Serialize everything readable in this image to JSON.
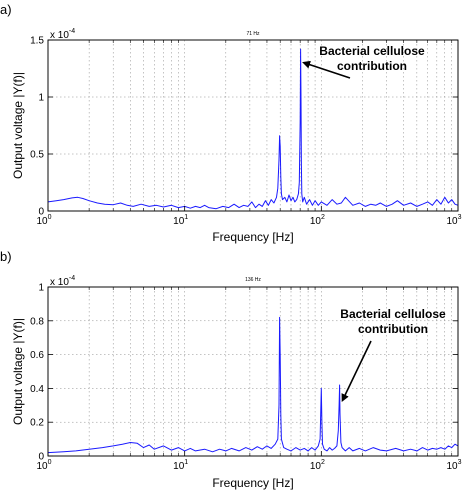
{
  "chart_data": [
    {
      "panel_label": "a)",
      "type": "line",
      "title": "71 Hz",
      "xlabel": "Frequency [Hz]",
      "ylabel": "Output voltage |Y(f)|",
      "x_scale": "log",
      "xlim": [
        1,
        1000
      ],
      "ylim": [
        0,
        1.5
      ],
      "y_multiplier": "x 10",
      "y_multiplier_exp": "-4",
      "x_ticks": [
        {
          "value": 1,
          "base": "10",
          "exp": "0"
        },
        {
          "value": 10,
          "base": "10",
          "exp": "1"
        },
        {
          "value": 100,
          "base": "10",
          "exp": "2"
        },
        {
          "value": 1000,
          "base": "10",
          "exp": "3"
        }
      ],
      "y_ticks": [
        {
          "value": 0,
          "label": "0"
        },
        {
          "value": 0.5,
          "label": "0.5"
        },
        {
          "value": 1,
          "label": "1"
        },
        {
          "value": 1.5,
          "label": "1.5"
        }
      ],
      "grid": true,
      "annotation": {
        "lines": [
          "Bacterial cellulose",
          "contribution"
        ],
        "points_to": {
          "x": 71,
          "y": 1.3
        }
      },
      "series": [
        {
          "color": "#1a1aff",
          "x": [
            1,
            1.15,
            1.3,
            1.5,
            1.65,
            1.8,
            2,
            2.3,
            2.6,
            3,
            3.4,
            3.8,
            4.2,
            4.8,
            5.5,
            6.2,
            7,
            8,
            9,
            10,
            11,
            12,
            13,
            14,
            15,
            17,
            19,
            21,
            23,
            25,
            27,
            29,
            31,
            33,
            35,
            37,
            39,
            41,
            43,
            45,
            47,
            48,
            49,
            49.5,
            50,
            50.5,
            51,
            52,
            54,
            56,
            58,
            60,
            62,
            64,
            66,
            68,
            69,
            70,
            70.5,
            71,
            71.5,
            72,
            73,
            75,
            78,
            82,
            86,
            90,
            95,
            100,
            110,
            120,
            130,
            140,
            150,
            170,
            190,
            210,
            230,
            250,
            270,
            300,
            330,
            360,
            400,
            450,
            500,
            550,
            600,
            650,
            700,
            750,
            800,
            850,
            900,
            950,
            1000
          ],
          "y": [
            0.08,
            0.09,
            0.1,
            0.115,
            0.12,
            0.11,
            0.09,
            0.07,
            0.06,
            0.055,
            0.07,
            0.05,
            0.04,
            0.06,
            0.04,
            0.05,
            0.035,
            0.05,
            0.03,
            0.04,
            0.025,
            0.04,
            0.03,
            0.05,
            0.03,
            0.02,
            0.04,
            0.03,
            0.06,
            0.03,
            0.05,
            0.04,
            0.08,
            0.03,
            0.06,
            0.04,
            0.09,
            0.05,
            0.1,
            0.07,
            0.12,
            0.2,
            0.45,
            0.66,
            0.57,
            0.3,
            0.15,
            0.1,
            0.12,
            0.08,
            0.14,
            0.09,
            0.12,
            0.08,
            0.1,
            0.15,
            0.25,
            0.8,
            1.42,
            1.0,
            0.4,
            0.15,
            0.08,
            0.12,
            0.06,
            0.1,
            0.05,
            0.09,
            0.05,
            0.08,
            0.05,
            0.1,
            0.06,
            0.07,
            0.12,
            0.05,
            0.07,
            0.04,
            0.06,
            0.05,
            0.07,
            0.04,
            0.06,
            0.09,
            0.05,
            0.07,
            0.04,
            0.06,
            0.08,
            0.05,
            0.1,
            0.06,
            0.12,
            0.07,
            0.1,
            0.06,
            0.05
          ]
        }
      ]
    },
    {
      "panel_label": "b)",
      "type": "line",
      "title": "136 Hz",
      "xlabel": "Frequency [Hz]",
      "ylabel": "Output voltage |Y(f)|",
      "x_scale": "log",
      "xlim": [
        1,
        1000
      ],
      "ylim": [
        0,
        1
      ],
      "y_multiplier": "x 10",
      "y_multiplier_exp": "-4",
      "x_ticks": [
        {
          "value": 1,
          "base": "10",
          "exp": "0"
        },
        {
          "value": 10,
          "base": "10",
          "exp": "1"
        },
        {
          "value": 100,
          "base": "10",
          "exp": "2"
        },
        {
          "value": 1000,
          "base": "10",
          "exp": "3"
        }
      ],
      "y_ticks": [
        {
          "value": 0,
          "label": "0"
        },
        {
          "value": 0.2,
          "label": "0.2"
        },
        {
          "value": 0.4,
          "label": "0.4"
        },
        {
          "value": 0.6,
          "label": "0.6"
        },
        {
          "value": 0.8,
          "label": "0.8"
        },
        {
          "value": 1,
          "label": "1"
        }
      ],
      "grid": true,
      "annotation": {
        "lines": [
          "Bacterial cellulose",
          "contribution"
        ],
        "points_to": {
          "x": 136,
          "y": 0.33
        }
      },
      "series": [
        {
          "color": "#1a1aff",
          "x": [
            1,
            1.3,
            1.6,
            2,
            2.5,
            3,
            3.5,
            4,
            4.5,
            5,
            5.5,
            6,
            7,
            8,
            9,
            10,
            11,
            12,
            14,
            16,
            18,
            20,
            22,
            25,
            28,
            31,
            34,
            37,
            40,
            43,
            46,
            48,
            49,
            49.5,
            50,
            50.5,
            51,
            53,
            56,
            60,
            65,
            70,
            75,
            80,
            85,
            90,
            95,
            98,
            99,
            100,
            101,
            102,
            105,
            110,
            115,
            120,
            125,
            130,
            133,
            135,
            136,
            137,
            139,
            142,
            150,
            160,
            170,
            190,
            210,
            240,
            270,
            300,
            350,
            400,
            450,
            500,
            550,
            600,
            650,
            700,
            750,
            800,
            850,
            900,
            950,
            1000
          ],
          "y": [
            0.02,
            0.025,
            0.03,
            0.04,
            0.05,
            0.06,
            0.07,
            0.08,
            0.075,
            0.05,
            0.065,
            0.04,
            0.06,
            0.035,
            0.05,
            0.03,
            0.045,
            0.03,
            0.04,
            0.025,
            0.04,
            0.03,
            0.045,
            0.03,
            0.05,
            0.035,
            0.055,
            0.04,
            0.06,
            0.045,
            0.07,
            0.1,
            0.3,
            0.82,
            0.6,
            0.25,
            0.1,
            0.05,
            0.04,
            0.03,
            0.05,
            0.035,
            0.045,
            0.03,
            0.05,
            0.035,
            0.06,
            0.1,
            0.25,
            0.4,
            0.2,
            0.07,
            0.04,
            0.03,
            0.05,
            0.035,
            0.045,
            0.06,
            0.15,
            0.3,
            0.42,
            0.25,
            0.08,
            0.05,
            0.03,
            0.05,
            0.03,
            0.045,
            0.03,
            0.05,
            0.035,
            0.03,
            0.045,
            0.03,
            0.04,
            0.03,
            0.05,
            0.035,
            0.045,
            0.04,
            0.05,
            0.04,
            0.06,
            0.05,
            0.07,
            0.06
          ]
        }
      ]
    }
  ]
}
